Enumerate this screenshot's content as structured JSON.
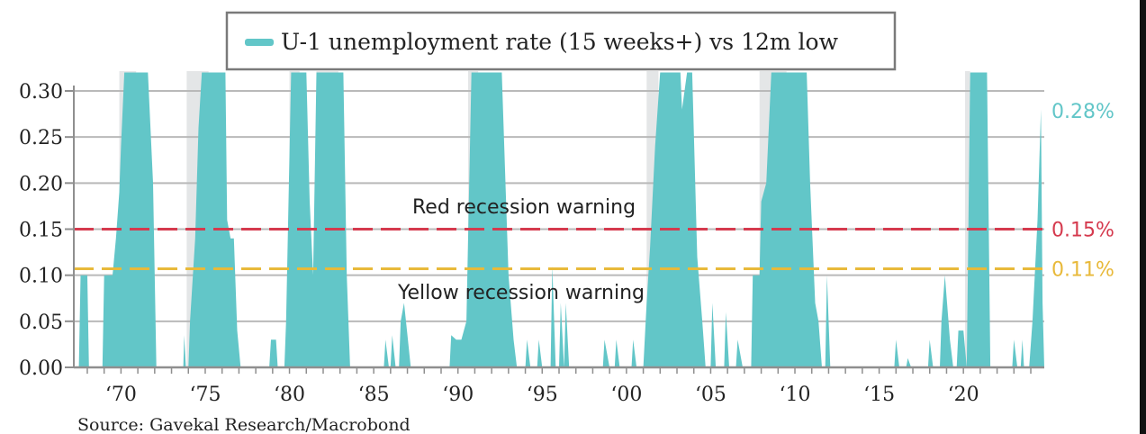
{
  "chart_data": {
    "type": "area",
    "legend": "U-1 unemployment rate (15 weeks+) vs 12m low",
    "legend_position": "top-center",
    "source": "Source: Gavekal Research/Macrobond",
    "x_ticks": [
      "‘70",
      "‘75",
      "‘80",
      "‘85",
      "‘90",
      "‘95",
      "‘00",
      "‘05",
      "‘10",
      "‘15",
      "‘20"
    ],
    "x_tick_years": [
      1970,
      1975,
      1980,
      1985,
      1990,
      1995,
      2000,
      2005,
      2010,
      2015,
      2020
    ],
    "y_ticks": [
      "0.00",
      "0.05",
      "0.10",
      "0.15",
      "0.20",
      "0.25",
      "0.30"
    ],
    "y_tick_values": [
      0,
      0.05,
      0.1,
      0.15,
      0.2,
      0.25,
      0.3
    ],
    "xlim": [
      1967.2,
      2024.8
    ],
    "ylim": [
      0,
      0.32
    ],
    "grid": true,
    "series_color": "#62c6c8",
    "recessions": [
      [
        1969.9,
        1970.9
      ],
      [
        1973.9,
        1975.2
      ],
      [
        1980.0,
        1980.6
      ],
      [
        1981.6,
        1982.9
      ],
      [
        1990.6,
        1991.2
      ],
      [
        2001.2,
        2001.9
      ],
      [
        2007.9,
        2009.5
      ],
      [
        2020.1,
        2020.4
      ]
    ],
    "thresholds": [
      {
        "value": 0.15,
        "label": "0.15%",
        "annotation": "Red recession warning",
        "color": "#d53a4e"
      },
      {
        "value": 0.107,
        "label": "0.11%",
        "annotation": "Yellow recession warning",
        "color": "#e8b93a"
      }
    ],
    "last_value_label": "0.28%",
    "values": [
      [
        1967.2,
        0
      ],
      [
        1967.5,
        0
      ],
      [
        1967.6,
        0.1
      ],
      [
        1968.0,
        0.1
      ],
      [
        1968.1,
        0
      ],
      [
        1968.9,
        0
      ],
      [
        1969.0,
        0.1
      ],
      [
        1969.5,
        0.1
      ],
      [
        1969.7,
        0.14
      ],
      [
        1969.9,
        0.19
      ],
      [
        1970.0,
        0.24
      ],
      [
        1970.2,
        0.32
      ],
      [
        1971.6,
        0.32
      ],
      [
        1971.9,
        0.2
      ],
      [
        1972.1,
        0
      ],
      [
        1973.7,
        0
      ],
      [
        1973.75,
        0.035
      ],
      [
        1973.85,
        0
      ],
      [
        1974.0,
        0
      ],
      [
        1974.1,
        0.05
      ],
      [
        1974.4,
        0.14
      ],
      [
        1974.6,
        0.26
      ],
      [
        1974.8,
        0.32
      ],
      [
        1976.2,
        0.32
      ],
      [
        1976.3,
        0.16
      ],
      [
        1976.5,
        0.14
      ],
      [
        1976.7,
        0.14
      ],
      [
        1976.9,
        0.04
      ],
      [
        1977.1,
        0
      ],
      [
        1978.8,
        0
      ],
      [
        1978.9,
        0.03
      ],
      [
        1979.2,
        0.03
      ],
      [
        1979.3,
        0
      ],
      [
        1979.7,
        0
      ],
      [
        1979.8,
        0.05
      ],
      [
        1980.1,
        0.32
      ],
      [
        1981.0,
        0.32
      ],
      [
        1981.2,
        0.18
      ],
      [
        1981.4,
        0.1
      ],
      [
        1981.6,
        0.32
      ],
      [
        1983.2,
        0.32
      ],
      [
        1983.4,
        0.1
      ],
      [
        1983.6,
        0
      ],
      [
        1985.6,
        0
      ],
      [
        1985.7,
        0.03
      ],
      [
        1985.9,
        0
      ],
      [
        1986.0,
        0
      ],
      [
        1986.1,
        0.035
      ],
      [
        1986.3,
        0
      ],
      [
        1986.5,
        0
      ],
      [
        1986.6,
        0.05
      ],
      [
        1986.8,
        0.07
      ],
      [
        1987.0,
        0.035
      ],
      [
        1987.2,
        0
      ],
      [
        1989.5,
        0
      ],
      [
        1989.6,
        0.035
      ],
      [
        1989.9,
        0.03
      ],
      [
        1990.2,
        0.03
      ],
      [
        1990.5,
        0.05
      ],
      [
        1990.8,
        0.32
      ],
      [
        1992.6,
        0.32
      ],
      [
        1993.0,
        0.1
      ],
      [
        1993.3,
        0.03
      ],
      [
        1993.5,
        0
      ],
      [
        1994.0,
        0
      ],
      [
        1994.1,
        0.03
      ],
      [
        1994.3,
        0
      ],
      [
        1994.7,
        0
      ],
      [
        1994.8,
        0.03
      ],
      [
        1995.0,
        0
      ],
      [
        1995.5,
        0
      ],
      [
        1995.6,
        0.11
      ],
      [
        1995.8,
        0
      ],
      [
        1996.0,
        0
      ],
      [
        1996.1,
        0.07
      ],
      [
        1996.3,
        0
      ],
      [
        1996.4,
        0.07
      ],
      [
        1996.6,
        0
      ],
      [
        1998.6,
        0
      ],
      [
        1998.7,
        0.03
      ],
      [
        1999.0,
        0
      ],
      [
        1999.3,
        0
      ],
      [
        1999.4,
        0.03
      ],
      [
        1999.6,
        0
      ],
      [
        2000.3,
        0
      ],
      [
        2000.4,
        0.03
      ],
      [
        2000.6,
        0
      ],
      [
        2001.0,
        0
      ],
      [
        2001.2,
        0.07
      ],
      [
        2001.4,
        0.13
      ],
      [
        2001.7,
        0.24
      ],
      [
        2002.0,
        0.32
      ],
      [
        2003.2,
        0.32
      ],
      [
        2003.3,
        0.28
      ],
      [
        2003.6,
        0.32
      ],
      [
        2003.9,
        0.32
      ],
      [
        2004.2,
        0.12
      ],
      [
        2004.5,
        0.05
      ],
      [
        2004.7,
        0
      ],
      [
        2005.0,
        0
      ],
      [
        2005.1,
        0.07
      ],
      [
        2005.3,
        0
      ],
      [
        2005.8,
        0
      ],
      [
        2005.9,
        0.06
      ],
      [
        2006.1,
        0
      ],
      [
        2006.5,
        0
      ],
      [
        2006.6,
        0.03
      ],
      [
        2006.9,
        0
      ],
      [
        2007.4,
        0
      ],
      [
        2007.5,
        0.1
      ],
      [
        2007.9,
        0.1
      ],
      [
        2008.0,
        0.18
      ],
      [
        2008.3,
        0.2
      ],
      [
        2008.6,
        0.32
      ],
      [
        2010.7,
        0.32
      ],
      [
        2010.9,
        0.2
      ],
      [
        2011.2,
        0.07
      ],
      [
        2011.4,
        0.05
      ],
      [
        2011.6,
        0
      ],
      [
        2011.8,
        0
      ],
      [
        2011.9,
        0.1
      ],
      [
        2012.1,
        0
      ],
      [
        2015.9,
        0
      ],
      [
        2016.0,
        0.03
      ],
      [
        2016.2,
        0
      ],
      [
        2016.6,
        0
      ],
      [
        2016.7,
        0.01
      ],
      [
        2016.9,
        0
      ],
      [
        2017.9,
        0
      ],
      [
        2018.0,
        0.03
      ],
      [
        2018.2,
        0
      ],
      [
        2018.6,
        0
      ],
      [
        2018.7,
        0.05
      ],
      [
        2018.9,
        0.1
      ],
      [
        2019.2,
        0.03
      ],
      [
        2019.4,
        0
      ],
      [
        2019.6,
        0
      ],
      [
        2019.7,
        0.04
      ],
      [
        2020.0,
        0.04
      ],
      [
        2020.2,
        0
      ],
      [
        2020.4,
        0.32
      ],
      [
        2021.4,
        0.32
      ],
      [
        2021.6,
        0
      ],
      [
        2022.9,
        0
      ],
      [
        2023.0,
        0.03
      ],
      [
        2023.2,
        0
      ],
      [
        2023.4,
        0
      ],
      [
        2023.5,
        0.03
      ],
      [
        2023.6,
        0
      ],
      [
        2023.9,
        0
      ],
      [
        2024.1,
        0.05
      ],
      [
        2024.4,
        0.16
      ],
      [
        2024.6,
        0.28
      ],
      [
        2024.7,
        0.07
      ],
      [
        2024.8,
        0
      ]
    ]
  }
}
